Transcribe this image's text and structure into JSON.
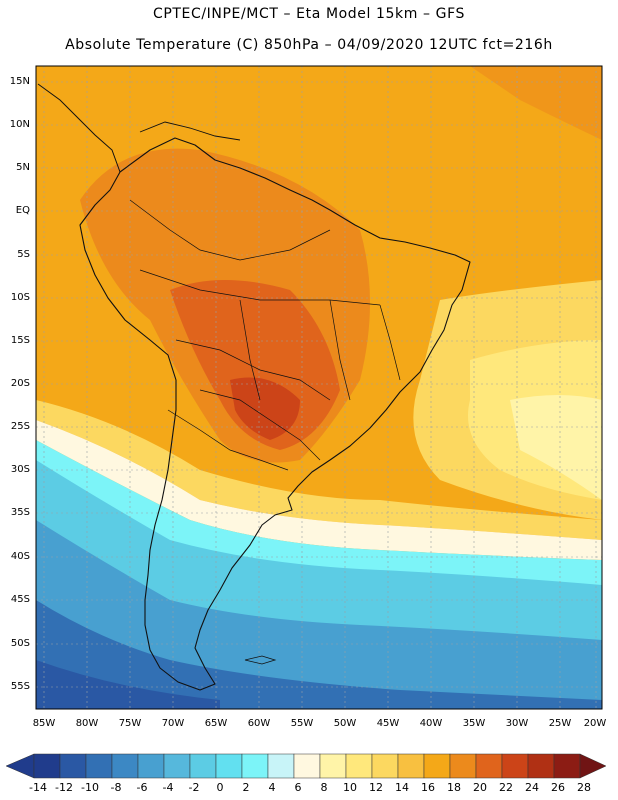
{
  "header": {
    "line1": "CPTEC/INPE/MCT –  Eta Model 15km – GFS",
    "line2": "Absolute Temperature (C) 850hPa – 04/09/2020 12UTC fct=216h"
  },
  "map": {
    "lat_labels": [
      "15N",
      "10N",
      "5N",
      "EQ",
      "5S",
      "10S",
      "15S",
      "20S",
      "25S",
      "30S",
      "35S",
      "40S",
      "45S",
      "50S",
      "55S"
    ],
    "lon_labels": [
      "85W",
      "80W",
      "75W",
      "70W",
      "65W",
      "60W",
      "55W",
      "50W",
      "45W",
      "40W",
      "35W",
      "30W",
      "25W",
      "20W"
    ]
  },
  "colorbar": {
    "labels": [
      "-14",
      "-12",
      "-10",
      "-8",
      "-6",
      "-4",
      "-2",
      "0",
      "2",
      "4",
      "6",
      "8",
      "10",
      "12",
      "14",
      "16",
      "18",
      "20",
      "22",
      "24",
      "26",
      "28"
    ],
    "colors": [
      "#203c8c",
      "#2a58a4",
      "#3270b4",
      "#3c88c4",
      "#48a0d0",
      "#56b8dc",
      "#5ccce4",
      "#62e0f0",
      "#7cf4f8",
      "#c8f4f8",
      "#fff8e0",
      "#fff4a8",
      "#ffe87c",
      "#fcd860",
      "#f8c040",
      "#f4a818",
      "#ec8a1c",
      "#e0641c",
      "#cc4418",
      "#b03014",
      "#8c1c14",
      "#701414"
    ],
    "low_color": "#203c8c",
    "high_color": "#701414"
  }
}
